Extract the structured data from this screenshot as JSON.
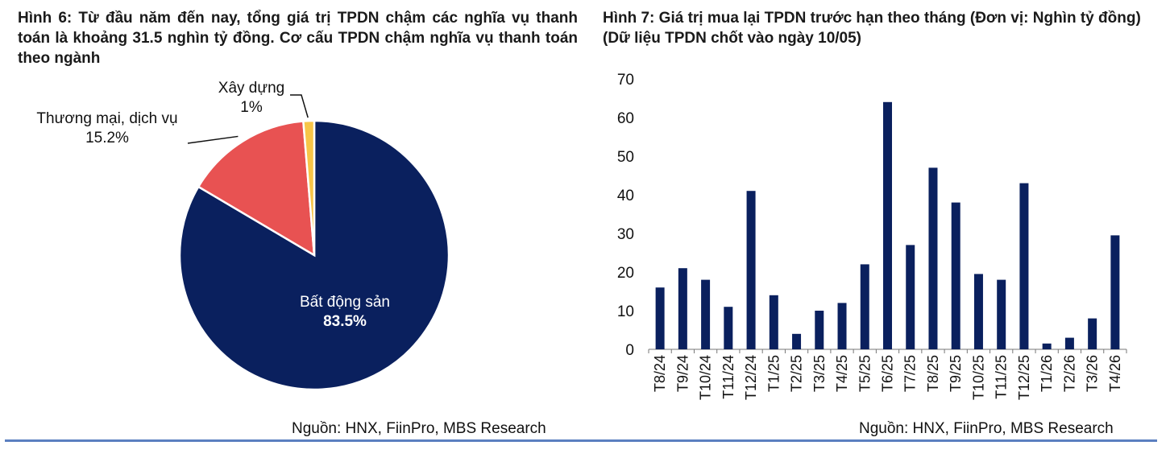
{
  "fig6": {
    "title": "Hình 6: Từ đầu năm đến nay, tổng giá trị TPDN chậm các nghĩa vụ thanh toán là khoảng 31.5 nghìn tỷ đồng. Cơ cấu TPDN chậm nghĩa vụ thanh toán theo ngành",
    "source": "Nguồn: HNX, FiinPro, MBS Research"
  },
  "fig7": {
    "title": "Hình 7: Giá trị mua lại TPDN trước hạn theo tháng (Đơn vị: Nghìn tỷ đồng) (Dữ liệu TPDN chốt vào ngày 10/05)",
    "source": "Nguồn: HNX, FiinPro, MBS Research"
  },
  "chart_data": [
    {
      "type": "pie",
      "slices": [
        {
          "label": "Bất động sản",
          "value_label": "83.5%",
          "value": 83.5,
          "color": "#0a205e"
        },
        {
          "label": "Thương mại, dịch vụ",
          "value_label": "15.2%",
          "value": 15.2,
          "color": "#e85252"
        },
        {
          "label": "Xây dựng",
          "value_label": "1%",
          "value": 1.3,
          "color": "#f7c548"
        }
      ]
    },
    {
      "type": "bar",
      "categories": [
        "T8/24",
        "T9/24",
        "T10/24",
        "T11/24",
        "T12/24",
        "T1/25",
        "T2/25",
        "T3/25",
        "T4/25",
        "T5/25",
        "T6/25",
        "T7/25",
        "T8/25",
        "T9/25",
        "T10/25",
        "T11/25",
        "T12/25",
        "T1/26",
        "T2/26",
        "T3/26",
        "T4/26"
      ],
      "values": [
        16,
        21,
        18,
        11,
        41,
        14,
        4,
        10,
        12,
        22,
        64,
        27,
        47,
        38,
        19.5,
        18,
        43,
        1.5,
        3,
        8,
        29.5
      ],
      "yticks": [
        0,
        10,
        20,
        30,
        40,
        50,
        60,
        70
      ],
      "ylim": [
        0,
        70
      ],
      "bar_color": "#0a205e",
      "xlabel": "",
      "ylabel": ""
    }
  ]
}
